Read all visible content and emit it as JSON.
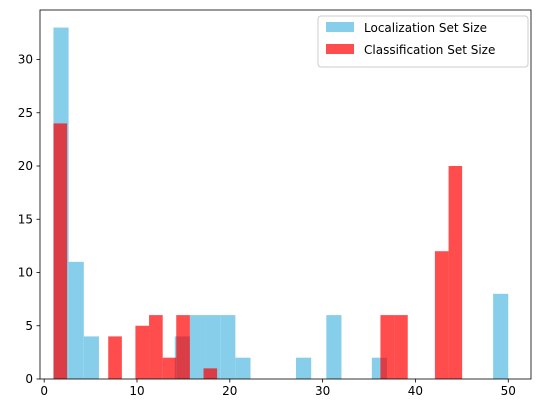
{
  "chart_data": {
    "type": "bar",
    "title": "",
    "xlabel": "",
    "ylabel": "",
    "xlim": [
      -0.45,
      52.45
    ],
    "ylim": [
      0,
      34.65
    ],
    "grid": false,
    "legend_position": "top-right",
    "xticks": [
      0,
      10,
      20,
      30,
      40,
      50
    ],
    "yticks": [
      0,
      5,
      10,
      15,
      20,
      25,
      30
    ],
    "series": [
      {
        "name": "Localization Set Size",
        "color": "#87ceeb",
        "opacity": 1,
        "bins": [
          {
            "x0": 1.0,
            "x1": 2.63,
            "count": 33
          },
          {
            "x0": 2.63,
            "x1": 4.27,
            "count": 11
          },
          {
            "x0": 4.27,
            "x1": 5.9,
            "count": 4
          },
          {
            "x0": 14.07,
            "x1": 15.7,
            "count": 4
          },
          {
            "x0": 15.7,
            "x1": 17.33,
            "count": 6
          },
          {
            "x0": 17.33,
            "x1": 18.97,
            "count": 6
          },
          {
            "x0": 18.97,
            "x1": 20.6,
            "count": 6
          },
          {
            "x0": 20.6,
            "x1": 22.23,
            "count": 2
          },
          {
            "x0": 27.13,
            "x1": 28.77,
            "count": 2
          },
          {
            "x0": 30.4,
            "x1": 32.03,
            "count": 6
          },
          {
            "x0": 35.3,
            "x1": 36.93,
            "count": 2
          },
          {
            "x0": 48.37,
            "x1": 50.0,
            "count": 8
          }
        ]
      },
      {
        "name": "Classification Set Size",
        "color": "#ff0000",
        "opacity": 0.7,
        "bins": [
          {
            "x0": 1.0,
            "x1": 2.47,
            "count": 24
          },
          {
            "x0": 6.9,
            "x1": 8.37,
            "count": 4
          },
          {
            "x0": 9.83,
            "x1": 11.3,
            "count": 5
          },
          {
            "x0": 11.3,
            "x1": 12.77,
            "count": 6
          },
          {
            "x0": 12.77,
            "x1": 14.23,
            "count": 2
          },
          {
            "x0": 14.23,
            "x1": 15.7,
            "count": 6
          },
          {
            "x0": 17.17,
            "x1": 18.63,
            "count": 1
          },
          {
            "x0": 36.23,
            "x1": 37.7,
            "count": 6
          },
          {
            "x0": 37.7,
            "x1": 39.17,
            "count": 6
          },
          {
            "x0": 42.1,
            "x1": 43.57,
            "count": 12
          },
          {
            "x0": 43.57,
            "x1": 45.03,
            "count": 20
          }
        ]
      }
    ]
  }
}
